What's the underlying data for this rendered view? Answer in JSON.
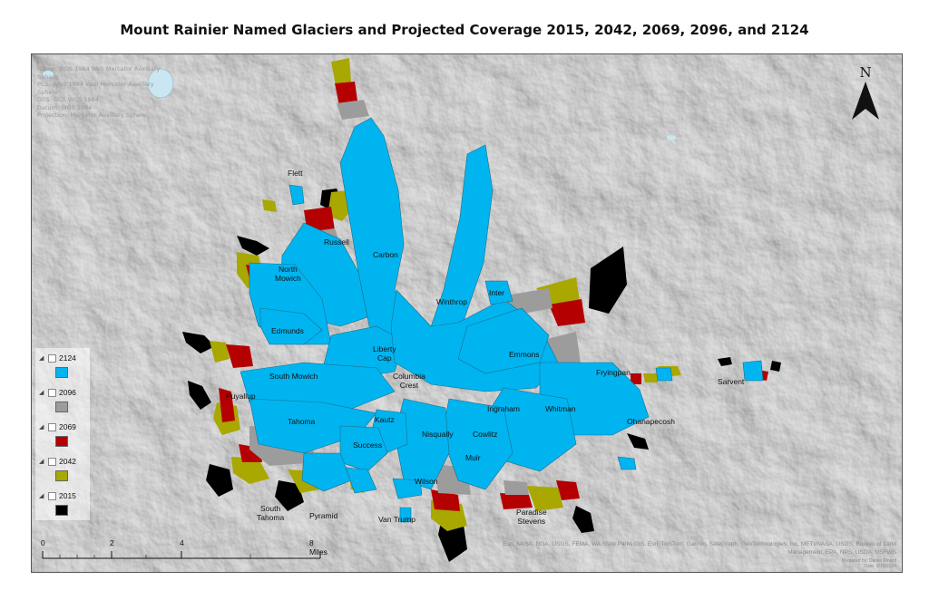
{
  "title": "Mount Rainier Named Glaciers and Projected Coverage 2015, 2042, 2069, 2096, and 2124",
  "metadata_lines": [
    "Name: WGS 1984 Web Mercator Auxiliary Sphere",
    "PCS: WGS 1984 Web Mercator Auxiliary Sphere",
    "GCS: GCS WGS 1984",
    "Datum: WGS 1984",
    "Projection: Mercator Auxiliary Sphere"
  ],
  "north_arrow": {
    "letter": "N",
    "icon": "north-arrow-icon"
  },
  "glacier_labels": {
    "flett": "Flett",
    "russell": "Russell",
    "carbon": "Carbon",
    "north_mowich_1": "North",
    "north_mowich_2": "Mowich",
    "winthrop": "Winthrop",
    "inter": "Inter",
    "edmunds": "Edmunds",
    "liberty_cap_1": "Liberty",
    "liberty_cap_2": "Cap",
    "emmons": "Emmons",
    "south_mowich": "South Mowich",
    "columbia_crest_1": "Columbia",
    "columbia_crest_2": "Crest",
    "fryingpan": "Fryingpan",
    "sarvent": "Sarvent",
    "puyallup": "Puyallup",
    "ingraham": "Ingraham",
    "whitman": "Whitman",
    "tahoma": "Tahoma",
    "kautz": "Kautz",
    "ohanapecosh": "Ohanapecosh",
    "nisqually": "Nisqually",
    "cowlitz": "Cowlitz",
    "success": "Success",
    "muir": "Muir",
    "wilson": "Wilson",
    "south_tahoma_1": "South",
    "south_tahoma_2": "Tahoma",
    "pyramid": "Pyramid",
    "van_trump": "Van Trump",
    "paradise_stevens_1": "Paradise",
    "paradise_stevens_2": "Stevens"
  },
  "legend": [
    {
      "year": "2124",
      "color": "#00b4f0"
    },
    {
      "year": "2096",
      "color": "#9c9c9c"
    },
    {
      "year": "2069",
      "color": "#b40000"
    },
    {
      "year": "2042",
      "color": "#a8a800"
    },
    {
      "year": "2015",
      "color": "#000000"
    }
  ],
  "scalebar": {
    "labels": [
      "0",
      "2",
      "4",
      "8 Miles"
    ]
  },
  "credits": {
    "line1": "Esri, NASA, NGA, USGS, FEMA, WA State Parks GIS, Esri, TomTom, Garmin, SafeGraph, GeoTechnologies, Inc, METI/NASA, USGS, Bureau of Land",
    "line2": "Management, EPA, NPS, USDA, USFWS"
  },
  "author": {
    "line1": "Prepared by: Daniel Kinard",
    "line2": "Date: 9/15/2024"
  },
  "colors": {
    "glacier_2124": "#00b4f0",
    "glacier_2096": "#9c9c9c",
    "glacier_2069": "#b40000",
    "glacier_2042": "#a8a800",
    "glacier_2015": "#000000"
  }
}
